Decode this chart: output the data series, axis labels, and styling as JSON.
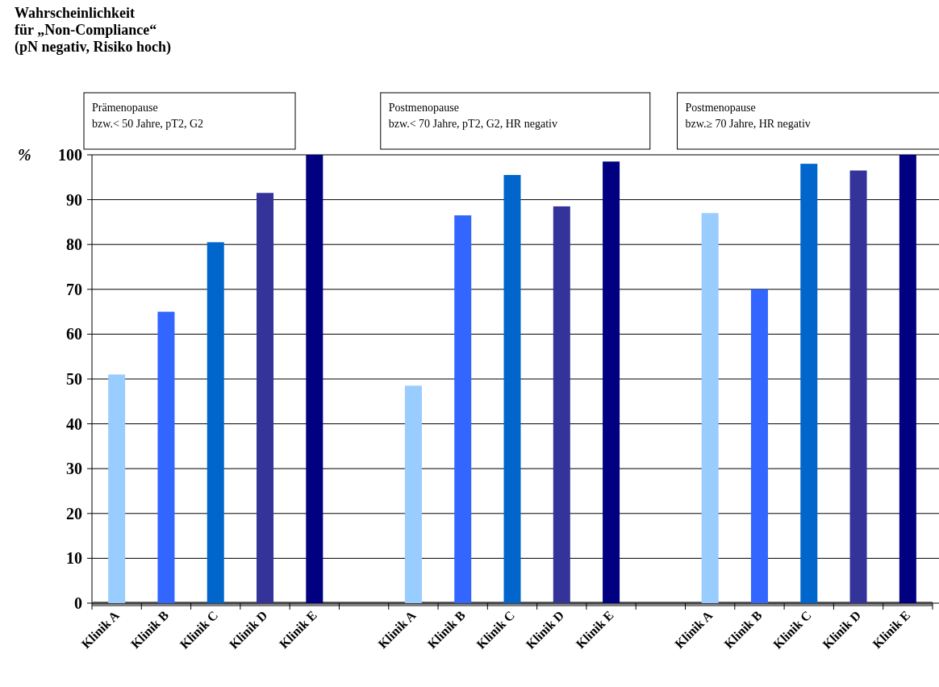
{
  "chart_data": {
    "type": "bar",
    "title": "Wahrscheinlichkeit\nfür „Non-Compliance“\n(pN negativ, Risiko hoch)",
    "ylabel": "%",
    "categories": [
      "Klinik A",
      "Klinik B",
      "Klinik C",
      "Klinik D",
      "Klinik E",
      null,
      "Klinik A",
      "Klinik B",
      "Klinik C",
      "Klinik D",
      "Klinik E",
      null,
      "Klinik A",
      "Klinik B",
      "Klinik C",
      "Klinik D",
      "Klinik E"
    ],
    "values": [
      51,
      65,
      80.5,
      91.5,
      100,
      null,
      48.5,
      86.5,
      95.5,
      88.5,
      98.5,
      null,
      87,
      70,
      98,
      96.5,
      100
    ],
    "colors": [
      "#99ccff",
      "#3366ff",
      "#0066cc",
      "#333399",
      "#000080",
      null,
      "#99ccff",
      "#3366ff",
      "#0066cc",
      "#333399",
      "#000080",
      null,
      "#99ccff",
      "#3366ff",
      "#0066cc",
      "#333399",
      "#000080"
    ],
    "ylim": [
      0,
      100
    ],
    "yticks": [
      0,
      10,
      20,
      30,
      40,
      50,
      60,
      70,
      80,
      90,
      100
    ],
    "grid": "y",
    "annotations": [
      "Prämenopause\nbzw.< 50 Jahre, pT2, G2",
      "Postmenopause\nbzw.< 70 Jahre, pT2, G2, HR negativ",
      "Postmenopause\nbzw.≥ 70 Jahre, HR negativ"
    ]
  }
}
